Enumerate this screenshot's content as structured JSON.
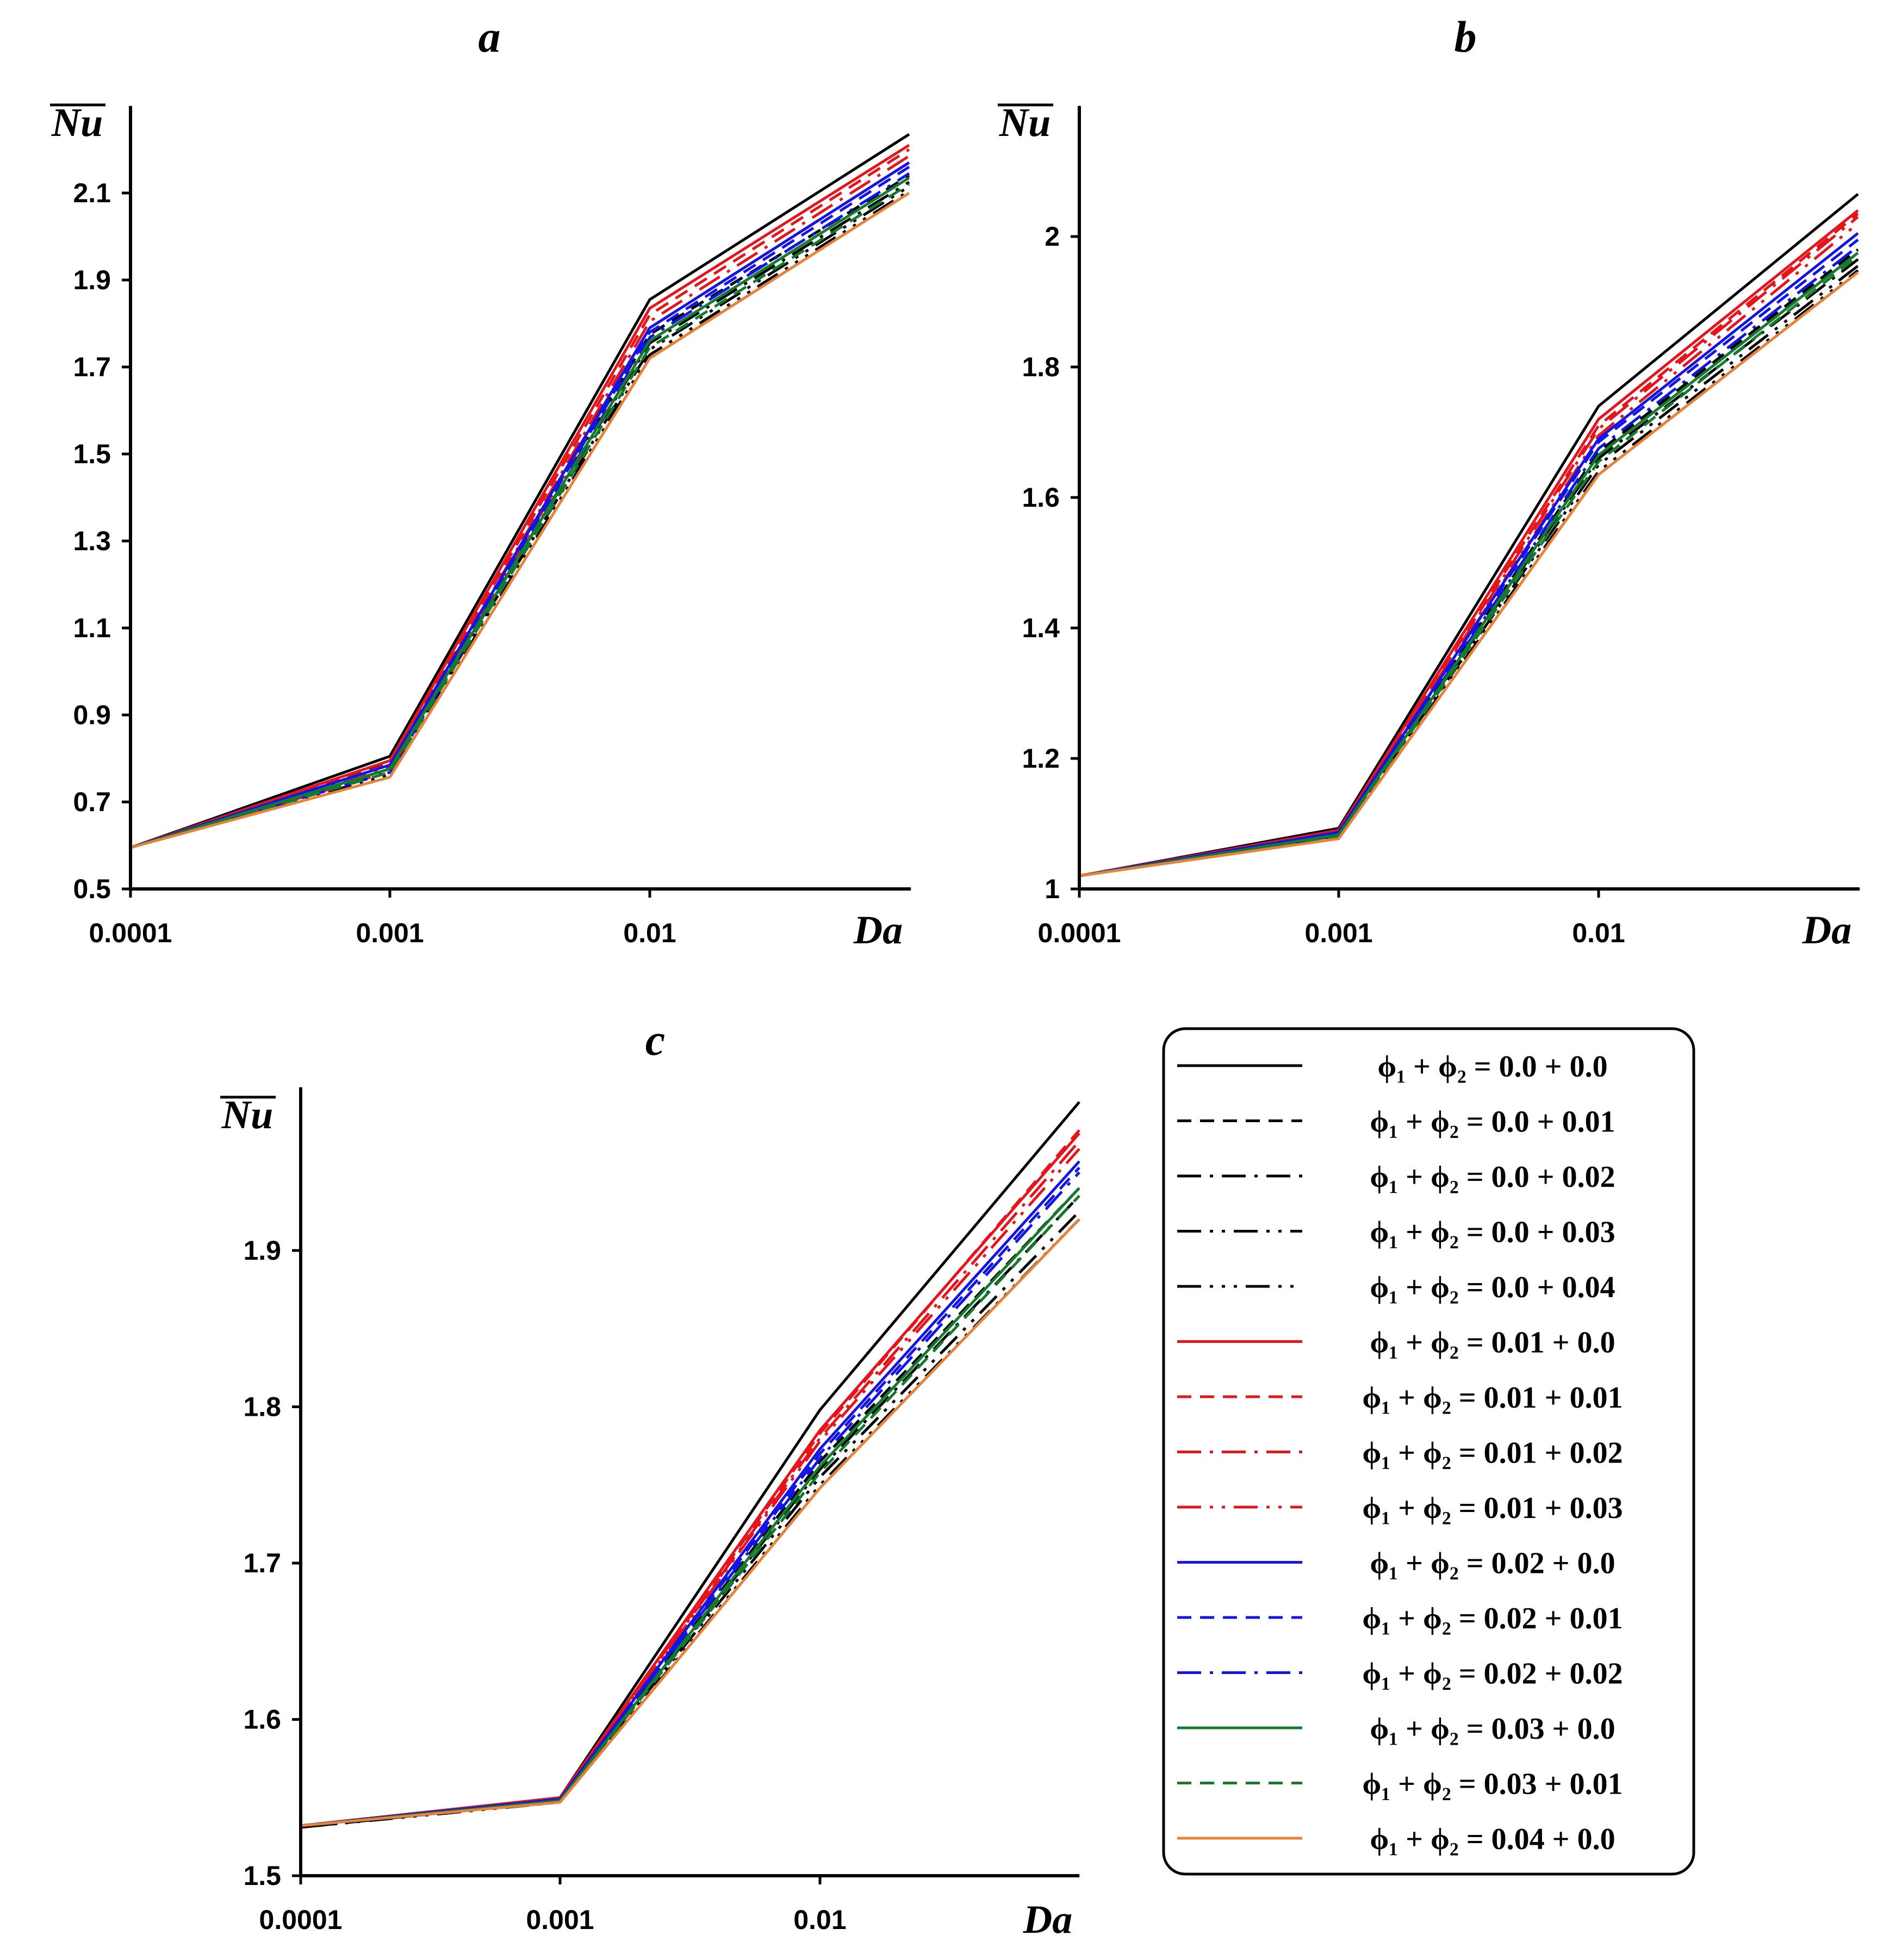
{
  "colors": {
    "black": "#000000",
    "red": "#e8141c",
    "blue": "#1414e6",
    "green": "#137a2e",
    "orange": "#e6823c"
  },
  "legend": {
    "entries": [
      {
        "label": "ϕ₁ + ϕ₂ = 0.0 + 0.0",
        "color": "#000000",
        "dash": "solid"
      },
      {
        "label": "ϕ₁ + ϕ₂ = 0.0 + 0.01",
        "color": "#000000",
        "dash": "dash"
      },
      {
        "label": "ϕ₁ + ϕ₂ = 0.0 + 0.02",
        "color": "#000000",
        "dash": "dashdot"
      },
      {
        "label": "ϕ₁ + ϕ₂ = 0.0 + 0.03",
        "color": "#000000",
        "dash": "dashdotdot"
      },
      {
        "label": "ϕ₁ + ϕ₂ = 0.0 + 0.04",
        "color": "#000000",
        "dash": "dashdotdotdot"
      },
      {
        "label": "ϕ₁ + ϕ₂ = 0.01 + 0.0",
        "color": "#e8141c",
        "dash": "solid"
      },
      {
        "label": "ϕ₁ + ϕ₂ = 0.01 + 0.01",
        "color": "#e8141c",
        "dash": "dash"
      },
      {
        "label": "ϕ₁ + ϕ₂ = 0.01 + 0.02",
        "color": "#e8141c",
        "dash": "dashdot"
      },
      {
        "label": "ϕ₁ + ϕ₂ = 0.01 + 0.03",
        "color": "#e8141c",
        "dash": "dashdotdot"
      },
      {
        "label": "ϕ₁ + ϕ₂ = 0.02 + 0.0",
        "color": "#1414e6",
        "dash": "solid"
      },
      {
        "label": "ϕ₁ + ϕ₂ = 0.02 + 0.01",
        "color": "#1414e6",
        "dash": "dash"
      },
      {
        "label": "ϕ₁ + ϕ₂ = 0.02 + 0.02",
        "color": "#1414e6",
        "dash": "dashdot"
      },
      {
        "label": "ϕ₁ + ϕ₂ = 0.03 + 0.0",
        "color": "#137a2e",
        "dash": "solid"
      },
      {
        "label": "ϕ₁ + ϕ₂ = 0.03 + 0.01",
        "color": "#137a2e",
        "dash": "dash"
      },
      {
        "label": "ϕ₁ + ϕ₂ = 0.04 + 0.0",
        "color": "#e6823c",
        "dash": "solid"
      }
    ]
  },
  "chart_data": [
    {
      "type": "line",
      "title": "a",
      "xlabel": "Da",
      "ylabel": "Nu",
      "x_scale": "log",
      "x": [
        0.0001,
        0.001,
        0.01,
        0.1
      ],
      "xticks": [
        "0.0001",
        "0.001",
        "0.01"
      ],
      "ylim": [
        0.5,
        2.28
      ],
      "yticks": [
        "0.5",
        "0.7",
        "0.9",
        "1.1",
        "1.3",
        "1.5",
        "1.7",
        "1.9",
        "2.1"
      ],
      "series": [
        {
          "name": "ϕ₁ + ϕ₂ = 0.0 + 0.0",
          "values": [
            0.595,
            0.805,
            1.855,
            2.235
          ]
        },
        {
          "name": "ϕ₁ + ϕ₂ = 0.0 + 0.01",
          "values": [
            0.595,
            0.793,
            1.775,
            2.14
          ]
        },
        {
          "name": "ϕ₁ + ϕ₂ = 0.0 + 0.02",
          "values": [
            0.595,
            0.782,
            1.755,
            2.125
          ]
        },
        {
          "name": "ϕ₁ + ϕ₂ = 0.0 + 0.03",
          "values": [
            0.595,
            0.772,
            1.74,
            2.115
          ]
        },
        {
          "name": "ϕ₁ + ϕ₂ = 0.0 + 0.04",
          "values": [
            0.595,
            0.763,
            1.728,
            2.105
          ]
        },
        {
          "name": "ϕ₁ + ϕ₂ = 0.01 + 0.0",
          "values": [
            0.595,
            0.795,
            1.835,
            2.21
          ]
        },
        {
          "name": "ϕ₁ + ϕ₂ = 0.01 + 0.01",
          "values": [
            0.595,
            0.787,
            1.82,
            2.2
          ]
        },
        {
          "name": "ϕ₁ + ϕ₂ = 0.01 + 0.02",
          "values": [
            0.595,
            0.778,
            1.805,
            2.185
          ]
        },
        {
          "name": "ϕ₁ + ϕ₂ = 0.01 + 0.03",
          "values": [
            0.595,
            0.77,
            1.79,
            2.17
          ]
        },
        {
          "name": "ϕ₁ + ϕ₂ = 0.02 + 0.0",
          "values": [
            0.595,
            0.785,
            1.79,
            2.17
          ]
        },
        {
          "name": "ϕ₁ + ϕ₂ = 0.02 + 0.01",
          "values": [
            0.595,
            0.776,
            1.78,
            2.16
          ]
        },
        {
          "name": "ϕ₁ + ϕ₂ = 0.02 + 0.02",
          "values": [
            0.595,
            0.768,
            1.768,
            2.145
          ]
        },
        {
          "name": "ϕ₁ + ϕ₂ = 0.03 + 0.0",
          "values": [
            0.595,
            0.776,
            1.76,
            2.135
          ]
        },
        {
          "name": "ϕ₁ + ϕ₂ = 0.03 + 0.01",
          "values": [
            0.595,
            0.768,
            1.745,
            2.12
          ]
        },
        {
          "name": "ϕ₁ + ϕ₂ = 0.04 + 0.0",
          "values": [
            0.595,
            0.757,
            1.72,
            2.1
          ]
        }
      ]
    },
    {
      "type": "line",
      "title": "b",
      "xlabel": "Da",
      "ylabel": "Nu",
      "x_scale": "log",
      "x": [
        0.0001,
        0.001,
        0.01,
        0.1
      ],
      "xticks": [
        "0.0001",
        "0.001",
        "0.01"
      ],
      "ylim": [
        1.0,
        2.12
      ],
      "yticks": [
        "1",
        "1.2",
        "1.4",
        "1.6",
        "1.8",
        "2"
      ],
      "series": [
        {
          "name": "ϕ₁ + ϕ₂ = 0.0 + 0.0",
          "values": [
            1.02,
            1.093,
            1.74,
            2.065
          ]
        },
        {
          "name": "ϕ₁ + ϕ₂ = 0.0 + 0.01",
          "values": [
            1.02,
            1.088,
            1.67,
            1.98
          ]
        },
        {
          "name": "ϕ₁ + ϕ₂ = 0.0 + 0.02",
          "values": [
            1.02,
            1.085,
            1.66,
            1.965
          ]
        },
        {
          "name": "ϕ₁ + ϕ₂ = 0.0 + 0.03",
          "values": [
            1.02,
            1.082,
            1.65,
            1.955
          ]
        },
        {
          "name": "ϕ₁ + ϕ₂ = 0.0 + 0.04",
          "values": [
            1.02,
            1.08,
            1.64,
            1.948
          ]
        },
        {
          "name": "ϕ₁ + ϕ₂ = 0.01 + 0.0",
          "values": [
            1.02,
            1.09,
            1.72,
            2.04
          ]
        },
        {
          "name": "ϕ₁ + ϕ₂ = 0.01 + 0.01",
          "values": [
            1.02,
            1.087,
            1.71,
            2.035
          ]
        },
        {
          "name": "ϕ₁ + ϕ₂ = 0.01 + 0.02",
          "values": [
            1.02,
            1.085,
            1.705,
            2.03
          ]
        },
        {
          "name": "ϕ₁ + ϕ₂ = 0.01 + 0.03",
          "values": [
            1.02,
            1.083,
            1.695,
            2.02
          ]
        },
        {
          "name": "ϕ₁ + ϕ₂ = 0.02 + 0.0",
          "values": [
            1.02,
            1.087,
            1.69,
            2.005
          ]
        },
        {
          "name": "ϕ₁ + ϕ₂ = 0.02 + 0.01",
          "values": [
            1.02,
            1.085,
            1.685,
            1.995
          ]
        },
        {
          "name": "ϕ₁ + ϕ₂ = 0.02 + 0.02",
          "values": [
            1.02,
            1.082,
            1.675,
            1.985
          ]
        },
        {
          "name": "ϕ₁ + ϕ₂ = 0.03 + 0.0",
          "values": [
            1.02,
            1.083,
            1.665,
            1.975
          ]
        },
        {
          "name": "ϕ₁ + ϕ₂ = 0.03 + 0.01",
          "values": [
            1.02,
            1.081,
            1.655,
            1.97
          ]
        },
        {
          "name": "ϕ₁ + ϕ₂ = 0.04 + 0.0",
          "values": [
            1.02,
            1.077,
            1.635,
            1.945
          ]
        }
      ]
    },
    {
      "type": "line",
      "title": "c",
      "xlabel": "Da",
      "ylabel": "Nu",
      "x_scale": "log",
      "x": [
        0.0001,
        0.001,
        0.01,
        0.1
      ],
      "xticks": [
        "0.0001",
        "0.001",
        "0.01"
      ],
      "ylim": [
        1.5,
        2.0
      ],
      "yticks": [
        "1.5",
        "1.6",
        "1.7",
        "1.8",
        "1.9"
      ],
      "series": [
        {
          "name": "ϕ₁ + ϕ₂ = 0.0 + 0.0",
          "values": [
            1.532,
            1.55,
            1.798,
            1.995
          ]
        },
        {
          "name": "ϕ₁ + ϕ₂ = 0.0 + 0.01",
          "values": [
            1.531,
            1.548,
            1.765,
            1.94
          ]
        },
        {
          "name": "ϕ₁ + ϕ₂ = 0.0 + 0.02",
          "values": [
            1.531,
            1.548,
            1.76,
            1.935
          ]
        },
        {
          "name": "ϕ₁ + ϕ₂ = 0.0 + 0.03",
          "values": [
            1.531,
            1.548,
            1.755,
            1.925
          ]
        },
        {
          "name": "ϕ₁ + ϕ₂ = 0.0 + 0.04",
          "values": [
            1.531,
            1.547,
            1.75,
            1.92
          ]
        },
        {
          "name": "ϕ₁ + ϕ₂ = 0.01 + 0.0",
          "values": [
            1.532,
            1.55,
            1.785,
            1.975
          ]
        },
        {
          "name": "ϕ₁ + ϕ₂ = 0.01 + 0.01",
          "values": [
            1.532,
            1.549,
            1.783,
            1.977
          ]
        },
        {
          "name": "ϕ₁ + ϕ₂ = 0.01 + 0.02",
          "values": [
            1.532,
            1.549,
            1.78,
            1.97
          ]
        },
        {
          "name": "ϕ₁ + ϕ₂ = 0.01 + 0.03",
          "values": [
            1.532,
            1.549,
            1.778,
            1.965
          ]
        },
        {
          "name": "ϕ₁ + ϕ₂ = 0.02 + 0.0",
          "values": [
            1.532,
            1.549,
            1.773,
            1.957
          ]
        },
        {
          "name": "ϕ₁ + ϕ₂ = 0.02 + 0.01",
          "values": [
            1.532,
            1.549,
            1.77,
            1.953
          ]
        },
        {
          "name": "ϕ₁ + ϕ₂ = 0.02 + 0.02",
          "values": [
            1.532,
            1.549,
            1.767,
            1.95
          ]
        },
        {
          "name": "ϕ₁ + ϕ₂ = 0.03 + 0.0",
          "values": [
            1.532,
            1.548,
            1.762,
            1.94
          ]
        },
        {
          "name": "ϕ₁ + ϕ₂ = 0.03 + 0.01",
          "values": [
            1.532,
            1.548,
            1.758,
            1.935
          ]
        },
        {
          "name": "ϕ₁ + ϕ₂ = 0.04 + 0.0",
          "values": [
            1.532,
            1.547,
            1.748,
            1.92
          ]
        }
      ]
    }
  ]
}
